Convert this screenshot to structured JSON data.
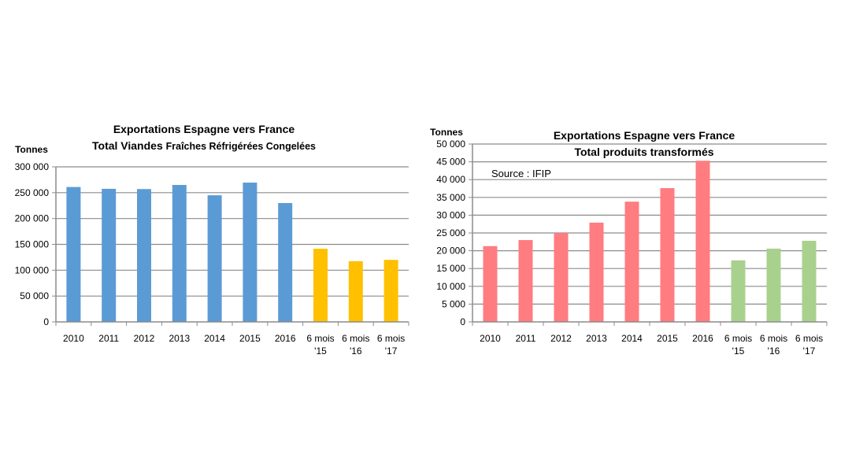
{
  "chart_data": [
    {
      "type": "bar",
      "title": "Exportations Espagne vers France",
      "subtitle": "Total Viandes Fraîches Réfrigérées  Congelées",
      "subtitle_parts": [
        "Total Viandes ",
        "Fraîches Réfrigérées  Congelées"
      ],
      "ylabel": "Tonnes",
      "xlabel": "",
      "ylim": [
        0,
        300000
      ],
      "yticks": [
        0,
        50000,
        100000,
        150000,
        200000,
        250000,
        300000
      ],
      "ytick_labels": [
        "0",
        "50 000",
        "100 000",
        "150 000",
        "200 000",
        "250 000",
        "300 000"
      ],
      "categories": [
        [
          "2010"
        ],
        [
          "2011"
        ],
        [
          "2012"
        ],
        [
          "2013"
        ],
        [
          "2014"
        ],
        [
          "2015"
        ],
        [
          "2016"
        ],
        [
          "6 mois",
          "'15"
        ],
        [
          "6 mois",
          "'16"
        ],
        [
          "6 mois",
          "'17"
        ]
      ],
      "values": [
        261000,
        257500,
        257000,
        265000,
        245000,
        269500,
        230000,
        141500,
        117500,
        120000
      ],
      "colors": [
        "#5b9bd5",
        "#5b9bd5",
        "#5b9bd5",
        "#5b9bd5",
        "#5b9bd5",
        "#5b9bd5",
        "#5b9bd5",
        "#ffc000",
        "#ffc000",
        "#ffc000"
      ],
      "grid": true
    },
    {
      "type": "bar",
      "title": "Exportations Espagne vers France",
      "subtitle": "Total produits transformés",
      "ylabel": "Tonnes",
      "xlabel": "",
      "annotation": "Source : IFIP",
      "ylim": [
        0,
        50000
      ],
      "yticks": [
        0,
        5000,
        10000,
        15000,
        20000,
        25000,
        30000,
        35000,
        40000,
        45000,
        50000
      ],
      "ytick_labels": [
        "0",
        "5 000",
        "10 000",
        "15 000",
        "20 000",
        "25 000",
        "30 000",
        "35 000",
        "40 000",
        "45 000",
        "50 000"
      ],
      "categories": [
        [
          "2010"
        ],
        [
          "2011"
        ],
        [
          "2012"
        ],
        [
          "2013"
        ],
        [
          "2014"
        ],
        [
          "2015"
        ],
        [
          "2016"
        ],
        [
          "6 mois",
          "'15"
        ],
        [
          "6 mois",
          "'16"
        ],
        [
          "6 mois",
          "'17"
        ]
      ],
      "values": [
        21300,
        23000,
        25000,
        27900,
        33800,
        37600,
        45300,
        17300,
        20600,
        22800
      ],
      "colors": [
        "#ff7c80",
        "#ff7c80",
        "#ff7c80",
        "#ff7c80",
        "#ff7c80",
        "#ff7c80",
        "#ff7c80",
        "#a9d18e",
        "#a9d18e",
        "#a9d18e"
      ],
      "grid": true
    }
  ]
}
